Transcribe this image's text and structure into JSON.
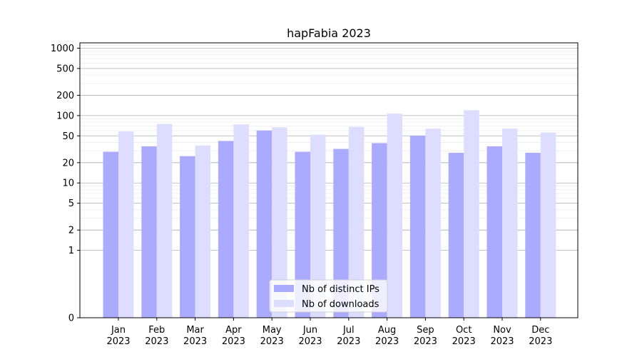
{
  "chart_data": {
    "type": "bar",
    "title": "hapFabia 2023",
    "xlabel": "",
    "ylabel": "",
    "yscale": "symlog",
    "ylim": [
      0,
      1200
    ],
    "yticks": [
      0,
      1,
      2,
      5,
      10,
      20,
      50,
      100,
      200,
      500,
      1000
    ],
    "grid": "y",
    "legend_position": "lower center",
    "categories": [
      "Jan\n2023",
      "Feb\n2023",
      "Mar\n2023",
      "Apr\n2023",
      "May\n2023",
      "Jun\n2023",
      "Jul\n2023",
      "Aug\n2023",
      "Sep\n2023",
      "Oct\n2023",
      "Nov\n2023",
      "Dec\n2023"
    ],
    "series": [
      {
        "name": "Nb of distinct IPs",
        "color": "#aaaaff",
        "values": [
          29,
          35,
          25,
          42,
          60,
          29,
          32,
          39,
          50,
          28,
          35,
          28
        ]
      },
      {
        "name": "Nb of downloads",
        "color": "#ddddff",
        "values": [
          58,
          75,
          36,
          74,
          67,
          52,
          68,
          107,
          64,
          120,
          64,
          56
        ]
      }
    ]
  }
}
